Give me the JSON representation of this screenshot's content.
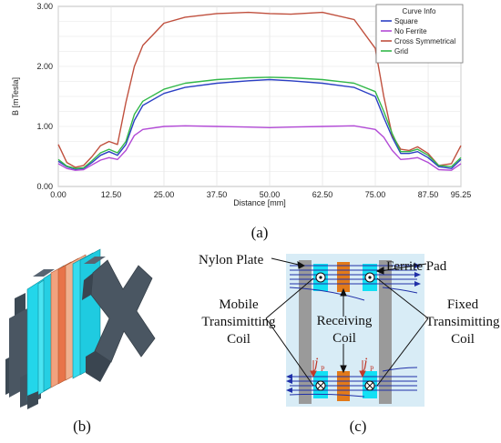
{
  "chart_data": {
    "type": "line",
    "xlabel": "Distance [mm]",
    "ylabel": "B [mTesla]",
    "xlim": [
      0,
      95.25
    ],
    "ylim": [
      0,
      3.0
    ],
    "x_ticks": [
      "0.00",
      "12.50",
      "25.00",
      "37.50",
      "50.00",
      "62.50",
      "75.00",
      "87.50",
      "95.25"
    ],
    "y_ticks": [
      "0.00",
      "1.00",
      "2.00",
      "3.00"
    ],
    "legend_title": "Curve Info",
    "legend_position": "top-right",
    "grid": true,
    "series": [
      {
        "name": "Square",
        "color": "#2b3fc4",
        "x": [
          0,
          2,
          4,
          6,
          8,
          10,
          12,
          14,
          16,
          18,
          20,
          25,
          30,
          37.5,
          45,
          50,
          55,
          62.5,
          70,
          75,
          77,
          79,
          81,
          83,
          85,
          87.5,
          90,
          93,
          95.25
        ],
        "y": [
          0.42,
          0.33,
          0.29,
          0.3,
          0.4,
          0.52,
          0.58,
          0.52,
          0.7,
          1.1,
          1.35,
          1.55,
          1.65,
          1.72,
          1.76,
          1.78,
          1.76,
          1.72,
          1.65,
          1.5,
          1.15,
          0.82,
          0.55,
          0.55,
          0.58,
          0.48,
          0.33,
          0.3,
          0.45
        ]
      },
      {
        "name": "No Ferrite",
        "color": "#b24ad6",
        "x": [
          0,
          2,
          4,
          6,
          8,
          10,
          12,
          14,
          16,
          18,
          20,
          25,
          30,
          37.5,
          45,
          50,
          55,
          62.5,
          70,
          75,
          77,
          79,
          81,
          83,
          85,
          87.5,
          90,
          93,
          95.25
        ],
        "y": [
          0.38,
          0.3,
          0.27,
          0.28,
          0.36,
          0.44,
          0.48,
          0.45,
          0.6,
          0.85,
          0.95,
          1.0,
          1.01,
          1.0,
          0.99,
          0.98,
          0.99,
          1.0,
          1.01,
          0.95,
          0.82,
          0.6,
          0.45,
          0.46,
          0.48,
          0.4,
          0.28,
          0.27,
          0.38
        ]
      },
      {
        "name": "Cross Symmetrical",
        "color": "#c0503e",
        "x": [
          0,
          2,
          4,
          6,
          8,
          10,
          12,
          14,
          16,
          18,
          20,
          25,
          30,
          37.5,
          45,
          50,
          55,
          62.5,
          70,
          75,
          77,
          79,
          81,
          83,
          85,
          87.5,
          90,
          93,
          95.25
        ],
        "y": [
          0.7,
          0.4,
          0.32,
          0.35,
          0.5,
          0.68,
          0.75,
          0.7,
          1.4,
          2.0,
          2.35,
          2.72,
          2.82,
          2.88,
          2.9,
          2.88,
          2.87,
          2.9,
          2.78,
          2.3,
          1.5,
          0.85,
          0.62,
          0.6,
          0.66,
          0.55,
          0.35,
          0.38,
          0.68
        ]
      },
      {
        "name": "Grid",
        "color": "#33b84a",
        "x": [
          0,
          2,
          4,
          6,
          8,
          10,
          12,
          14,
          16,
          18,
          20,
          25,
          30,
          37.5,
          45,
          50,
          55,
          62.5,
          70,
          75,
          77,
          79,
          81,
          83,
          85,
          87.5,
          90,
          93,
          95.25
        ],
        "y": [
          0.45,
          0.34,
          0.3,
          0.31,
          0.43,
          0.56,
          0.62,
          0.56,
          0.75,
          1.2,
          1.42,
          1.62,
          1.72,
          1.78,
          1.81,
          1.82,
          1.81,
          1.78,
          1.72,
          1.58,
          1.25,
          0.88,
          0.58,
          0.58,
          0.62,
          0.52,
          0.35,
          0.33,
          0.48
        ]
      }
    ]
  },
  "captions": {
    "a": "(a)",
    "b": "(b)",
    "c": "(c)"
  },
  "diagram_c": {
    "nylon_plate": "Nylon Plate",
    "ferrite_pad": "Ferrite Pad",
    "mobile_coil": [
      "Mobile",
      "Transimitting",
      "Coil"
    ],
    "receiving_coil": [
      "Receiving",
      "Coil"
    ],
    "fixed_coil": [
      "Fixed",
      "Transimitting",
      "Coil"
    ],
    "current_symbol": "j",
    "current_subscript": "P"
  }
}
